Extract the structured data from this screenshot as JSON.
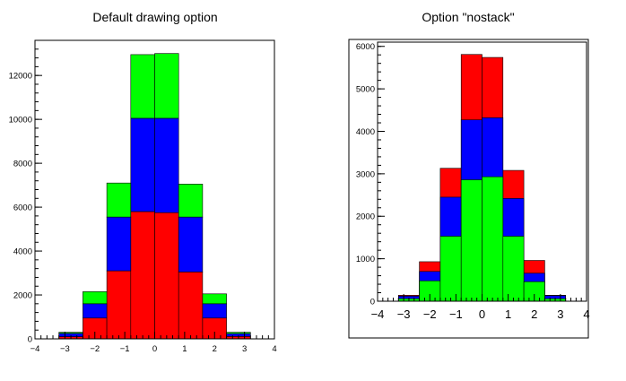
{
  "colors": {
    "red": "#ff0000",
    "blue": "#0000ff",
    "green": "#00ff00",
    "axis": "#000000"
  },
  "chart_data": [
    {
      "type": "bar",
      "mode": "stacked",
      "title": "Default drawing option",
      "xlabel": "",
      "ylabel": "",
      "x_edges": [
        -3.2,
        -2.4,
        -1.6,
        -0.8,
        0.0,
        0.8,
        1.6,
        2.4,
        3.2
      ],
      "xlim": [
        -4,
        4
      ],
      "ylim": [
        0,
        13600
      ],
      "x_ticks": [
        "−4",
        "−3",
        "−2",
        "−1",
        "0",
        "1",
        "2",
        "3",
        "4"
      ],
      "y_ticks": [
        "0",
        "2000",
        "4000",
        "6000",
        "8000",
        "10000",
        "12000"
      ],
      "grid": false,
      "series": [
        {
          "color": "red",
          "values": [
            100,
            950,
            3100,
            5800,
            5750,
            3050,
            950,
            110
          ]
        },
        {
          "color": "blue",
          "values": [
            150,
            650,
            2450,
            4250,
            4300,
            2500,
            650,
            130
          ]
        },
        {
          "color": "green",
          "values": [
            50,
            550,
            1550,
            2900,
            2950,
            1500,
            450,
            60
          ]
        }
      ]
    },
    {
      "type": "bar",
      "mode": "nostack",
      "title": "Option \"nostack\"",
      "xlabel": "",
      "ylabel": "",
      "x_edges": [
        -3.2,
        -2.4,
        -1.6,
        -0.8,
        0.0,
        0.8,
        1.6,
        2.4,
        3.2
      ],
      "xlim": [
        -4,
        4
      ],
      "ylim": [
        0,
        6100
      ],
      "x_ticks": [
        "−4",
        "−3",
        "−2",
        "−1",
        "0",
        "1",
        "2",
        "3",
        "4"
      ],
      "y_ticks": [
        "0",
        "1000",
        "2000",
        "3000",
        "4000",
        "5000",
        "6000"
      ],
      "grid": false,
      "series": [
        {
          "color": "red",
          "values": [
            140,
            930,
            3130,
            5810,
            5740,
            3080,
            960,
            140
          ]
        },
        {
          "color": "blue",
          "values": [
            120,
            700,
            2450,
            4270,
            4320,
            2420,
            660,
            130
          ]
        },
        {
          "color": "green",
          "values": [
            60,
            480,
            1530,
            2860,
            2930,
            1530,
            460,
            60
          ]
        }
      ]
    }
  ]
}
